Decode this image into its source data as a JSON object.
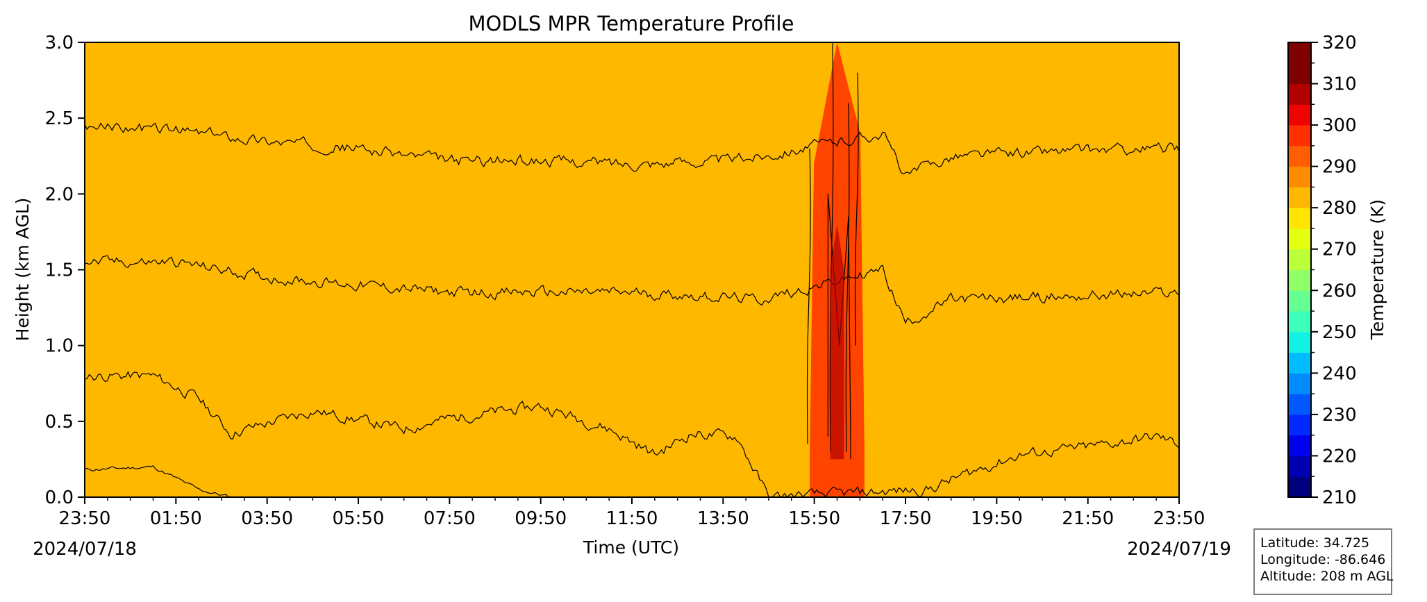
{
  "chart_data": {
    "type": "heatmap",
    "title": "MODLS MPR Temperature Profile",
    "xlabel": "Time (UTC)",
    "ylabel": "Height (km AGL)",
    "xlim": [
      "23:50",
      "23:50"
    ],
    "ylim": [
      0.0,
      3.0
    ],
    "x_ticks": [
      "23:50",
      "01:50",
      "03:50",
      "05:50",
      "07:50",
      "09:50",
      "11:50",
      "13:50",
      "15:50",
      "17:50",
      "19:50",
      "21:50",
      "23:50"
    ],
    "y_ticks": [
      "0.0",
      "0.5",
      "1.0",
      "1.5",
      "2.0",
      "2.5",
      "3.0"
    ],
    "start_date": "2024/07/18",
    "end_date": "2024/07/19",
    "colorbar": {
      "label": "Temperature (K)",
      "min": 210,
      "max": 320,
      "step": 5,
      "tick_labels": [
        "210",
        "220",
        "230",
        "240",
        "250",
        "260",
        "270",
        "280",
        "290",
        "300",
        "310",
        "320"
      ],
      "colors": [
        "#00007f",
        "#0000b2",
        "#0000ed",
        "#0029ff",
        "#0059ff",
        "#008cff",
        "#00bdff",
        "#12f2e4",
        "#3bffbb",
        "#66ff91",
        "#91ff66",
        "#bbff3b",
        "#e4ff12",
        "#ffe500",
        "#ffb800",
        "#ff8c00",
        "#ff5e00",
        "#ff2f00",
        "#ed0400",
        "#b20000",
        "#7f0000",
        "#7f0000"
      ]
    },
    "contour_levels_K": [
      300,
      295,
      290,
      285
    ],
    "contours": [
      {
        "level": 300,
        "time_h": [
          0,
          1.5,
          2.5,
          3.2
        ],
        "height_km": [
          0.18,
          0.2,
          0.05,
          0.0
        ]
      },
      {
        "level": 295,
        "time_h": [
          0,
          1.5,
          2.5,
          3.2,
          5,
          7,
          8,
          10,
          11.5,
          12.5,
          13.3,
          14.3,
          15,
          18.5,
          19.3,
          20.5,
          22,
          23.5,
          24
        ],
        "height_km": [
          0.8,
          0.8,
          0.65,
          0.42,
          0.57,
          0.45,
          0.52,
          0.6,
          0.45,
          0.28,
          0.42,
          0.4,
          0.0,
          0.05,
          0.15,
          0.28,
          0.33,
          0.4,
          0.35
        ]
      },
      {
        "level": 290,
        "time_h": [
          0,
          2,
          4,
          6,
          8,
          10,
          12,
          14,
          14.8,
          17.5,
          18,
          19,
          21,
          24
        ],
        "height_km": [
          1.55,
          1.55,
          1.45,
          1.4,
          1.35,
          1.35,
          1.35,
          1.32,
          1.3,
          1.5,
          1.15,
          1.3,
          1.32,
          1.35
        ]
      },
      {
        "level": 285,
        "time_h": [
          0,
          2,
          4,
          6,
          8,
          10,
          12,
          14,
          14.8,
          17.5,
          18,
          19,
          21,
          24
        ],
        "height_km": [
          2.45,
          2.42,
          2.35,
          2.3,
          2.22,
          2.22,
          2.2,
          2.22,
          2.25,
          2.4,
          2.12,
          2.25,
          2.28,
          2.3
        ]
      }
    ],
    "anomaly": {
      "time_h": [
        15.9,
        17.1
      ],
      "note": "warm vertical plume"
    }
  },
  "info": {
    "latitude": "Latitude: 34.725",
    "longitude": "Longitude: -86.646",
    "altitude": "Altitude: 208 m AGL"
  }
}
